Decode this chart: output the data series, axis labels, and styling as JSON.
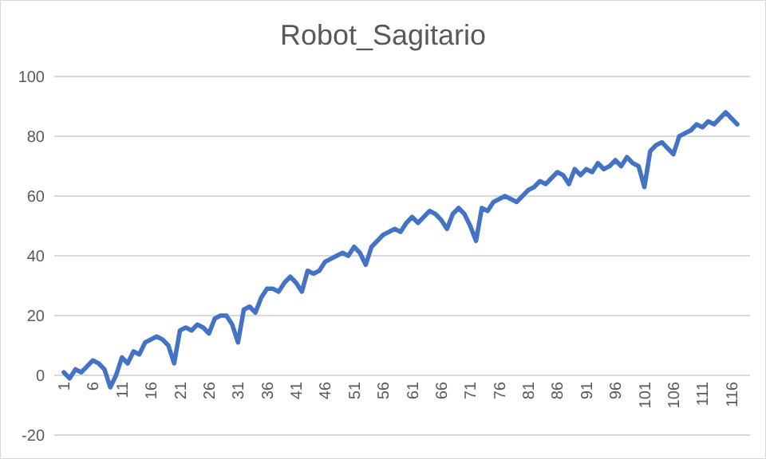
{
  "chart_data": {
    "type": "line",
    "title": "Robot_Sagitario",
    "categories": [
      "1",
      null,
      null,
      null,
      null,
      "6",
      null,
      null,
      null,
      null,
      "11",
      null,
      null,
      null,
      null,
      "16",
      null,
      null,
      null,
      null,
      "21",
      null,
      null,
      null,
      null,
      "26",
      null,
      null,
      null,
      null,
      "31",
      null,
      null,
      null,
      null,
      "36",
      null,
      null,
      null,
      null,
      "41",
      null,
      null,
      null,
      null,
      "46",
      null,
      null,
      null,
      null,
      "51",
      null,
      null,
      null,
      null,
      "56",
      null,
      null,
      null,
      null,
      "61",
      null,
      null,
      null,
      null,
      "66",
      null,
      null,
      null,
      null,
      "71",
      null,
      null,
      null,
      null,
      "76",
      null,
      null,
      null,
      null,
      "81",
      null,
      null,
      null,
      null,
      "86",
      null,
      null,
      null,
      null,
      "91",
      null,
      null,
      null,
      null,
      "96",
      null,
      null,
      null,
      null,
      "101",
      null,
      null,
      null,
      null,
      "106",
      null,
      null,
      null,
      null,
      "111",
      null,
      null,
      null,
      null,
      "116",
      null
    ],
    "series": [
      {
        "color": "#4472c4",
        "values": [
          1,
          -1,
          2,
          1,
          3,
          5,
          4,
          2,
          -4,
          0,
          6,
          4,
          8,
          7,
          11,
          12,
          13,
          12,
          10,
          4,
          15,
          16,
          15,
          17,
          16,
          14,
          19,
          20,
          20,
          17,
          11,
          22,
          23,
          21,
          26,
          29,
          29,
          28,
          31,
          33,
          31,
          28,
          35,
          34,
          35,
          38,
          39,
          40,
          41,
          40,
          43,
          41,
          37,
          43,
          45,
          47,
          48,
          49,
          48,
          51,
          53,
          51,
          53,
          55,
          54,
          52,
          49,
          54,
          56,
          54,
          50,
          45,
          56,
          55,
          58,
          59,
          60,
          59,
          58,
          60,
          62,
          63,
          65,
          64,
          66,
          68,
          67,
          64,
          69,
          67,
          69,
          68,
          71,
          69,
          70,
          72,
          70,
          73,
          71,
          70,
          63,
          75,
          77,
          78,
          76,
          74,
          80,
          81,
          82,
          84,
          83,
          85,
          84,
          86,
          88,
          86,
          84
        ]
      }
    ],
    "ylim": [
      -20,
      100
    ],
    "yticks": [
      -20,
      0,
      20,
      40,
      60,
      80,
      100
    ],
    "grid": "y",
    "marker": "none",
    "line_style": "solid"
  }
}
